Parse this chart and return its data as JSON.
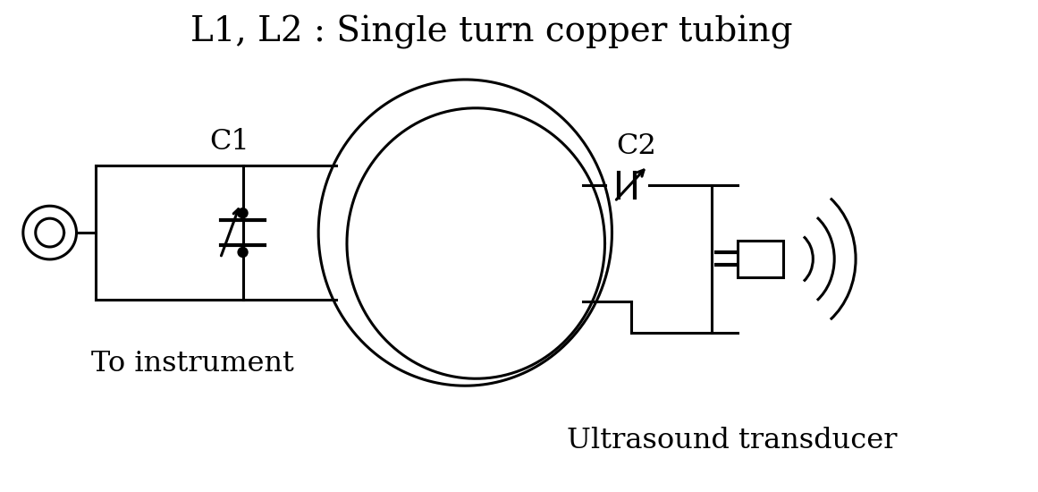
{
  "title": "L1, L2 : Single turn copper tubing",
  "label_c1": "C1",
  "label_c2": "C2",
  "label_instrument": "To instrument",
  "label_transducer": "Ultrasound transducer",
  "bg_color": "#ffffff",
  "line_color": "#000000",
  "linewidth": 2.2,
  "title_fontsize": 28,
  "label_fontsize": 23
}
